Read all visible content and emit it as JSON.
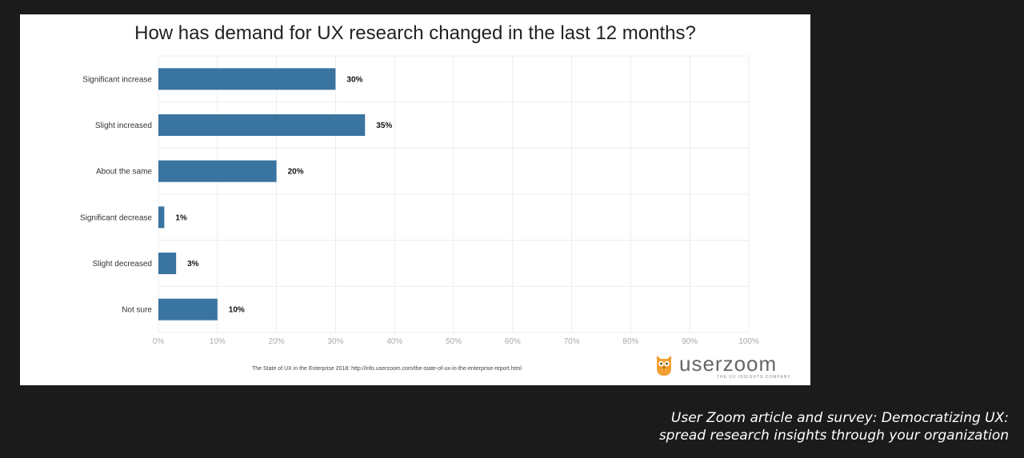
{
  "caption": {
    "line1": "User Zoom article and survey: Democratizing UX:",
    "line2": "spread research insights through your organization"
  },
  "source_note": "The State of UX in the Enterprise 2018: http://info.userzoom.com/the-state-of-ux-in-the-enterprise-report.html",
  "logo": {
    "name": "userzoom",
    "tagline": "THE UX INSIGHTS COMPANY",
    "icon": "owl-icon",
    "icon_color": "#f0a030"
  },
  "colors": {
    "bar": "#3a74a0",
    "grid": "#ececec"
  },
  "chart_data": {
    "type": "bar",
    "orientation": "horizontal",
    "title": "How has demand for UX research changed in the last 12 months?",
    "categories": [
      "Significant increase",
      "Slight increased",
      "About the same",
      "Significant decrease",
      "Slight decreased",
      "Not sure"
    ],
    "values": [
      30,
      35,
      20,
      1,
      3,
      10
    ],
    "value_labels": [
      "30%",
      "35%",
      "20%",
      "1%",
      "3%",
      "10%"
    ],
    "xlim": [
      0,
      100
    ],
    "x_ticks": [
      0,
      10,
      20,
      30,
      40,
      50,
      60,
      70,
      80,
      90,
      100
    ],
    "x_tick_labels": [
      "0%",
      "10%",
      "20%",
      "30%",
      "40%",
      "50%",
      "60%",
      "70%",
      "80%",
      "90%",
      "100%"
    ],
    "grid": true,
    "legend": "none"
  }
}
